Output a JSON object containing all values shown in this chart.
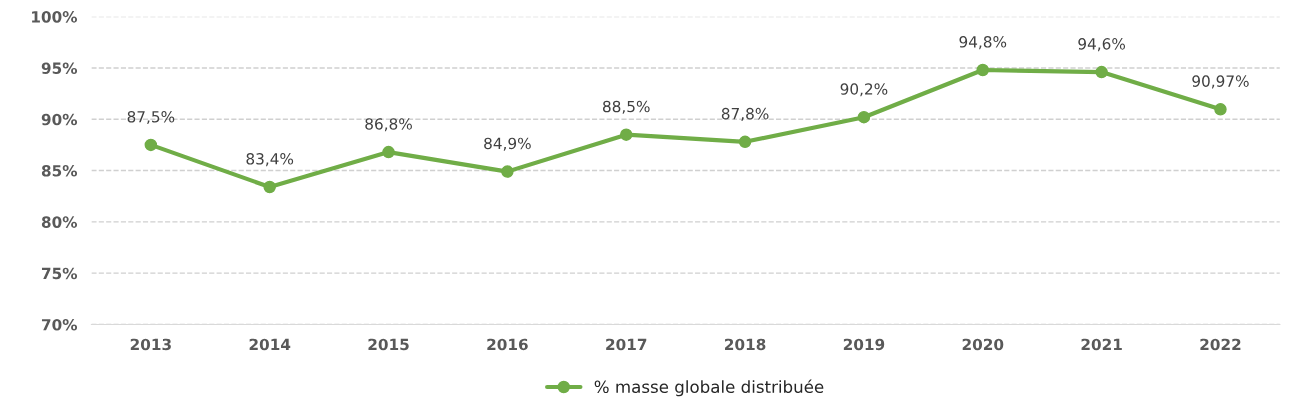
{
  "chart_data": {
    "type": "line",
    "categories": [
      "2013",
      "2014",
      "2015",
      "2016",
      "2017",
      "2018",
      "2019",
      "2020",
      "2021",
      "2022"
    ],
    "series": [
      {
        "name": "% masse globale distribuée",
        "color": "#70ad47",
        "values": [
          87.5,
          83.4,
          86.8,
          84.9,
          88.5,
          87.8,
          90.2,
          94.8,
          94.6,
          90.97
        ],
        "value_labels": [
          "87,5%",
          "83,4%",
          "86,8%",
          "84,9%",
          "88,5%",
          "87,8%",
          "90,2%",
          "94,8%",
          "94,6%",
          "90,97%"
        ]
      }
    ],
    "ylim": [
      70,
      100
    ],
    "yticks": [
      {
        "value": 70,
        "label": "70%"
      },
      {
        "value": 75,
        "label": "75%"
      },
      {
        "value": 80,
        "label": "80%"
      },
      {
        "value": 85,
        "label": "85%"
      },
      {
        "value": 90,
        "label": "90%"
      },
      {
        "value": 95,
        "label": "95%"
      },
      {
        "value": 100,
        "label": "100%"
      }
    ],
    "grid": "y",
    "legend": "bottom",
    "marker": "circle",
    "line_style": "solid"
  }
}
